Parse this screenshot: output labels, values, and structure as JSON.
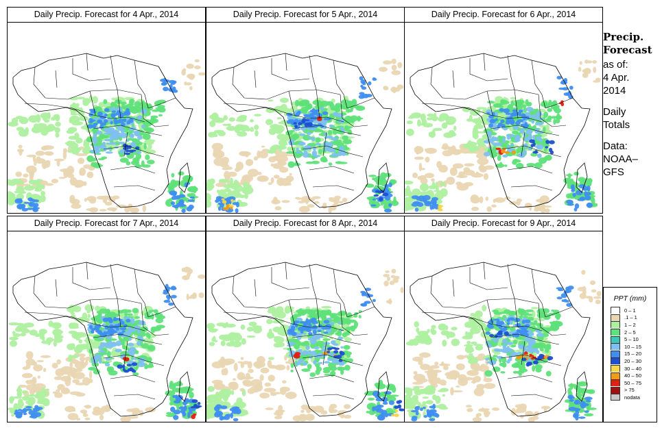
{
  "panels": [
    {
      "title": "Daily Precip. Forecast for  4 Apr., 2014"
    },
    {
      "title": "Daily Precip. Forecast for  5 Apr., 2014"
    },
    {
      "title": "Daily Precip. Forecast for  6 Apr., 2014"
    },
    {
      "title": "Daily Precip. Forecast for  7 Apr., 2014"
    },
    {
      "title": "Daily Precip. Forecast for  8 Apr., 2014"
    },
    {
      "title": "Daily Precip. Forecast for  9 Apr., 2014"
    }
  ],
  "sidebar": {
    "heading_line1": "Precip.",
    "heading_line2": "Forecast",
    "asof_label": "as of:",
    "asof_date_line1": "4 Apr.",
    "asof_date_line2": "2014",
    "totals_line1": "Daily",
    "totals_line2": "Totals",
    "data_line1": "Data:",
    "data_line2": "NOAA–",
    "data_line3": "GFS"
  },
  "legend": {
    "title": "PPT (mm)",
    "items": [
      {
        "label": "0 – 1",
        "color": "#ffffff"
      },
      {
        "label": ".1 – 1",
        "color": "#e9d6b2"
      },
      {
        "label": "1 – 2",
        "color": "#aef0a0"
      },
      {
        "label": "2 – 5",
        "color": "#5fe07a"
      },
      {
        "label": "5 – 10",
        "color": "#3cc8b4"
      },
      {
        "label": "10 – 15",
        "color": "#7ec0f0"
      },
      {
        "label": "15 – 20",
        "color": "#3f8ef0"
      },
      {
        "label": "20 – 30",
        "color": "#1f4fcf"
      },
      {
        "label": "30 – 40",
        "color": "#f6d64a"
      },
      {
        "label": "40 – 50",
        "color": "#f09a1a"
      },
      {
        "label": "50 – 75",
        "color": "#e02010"
      },
      {
        "label": "> 75",
        "color": "#a01010"
      },
      {
        "label": "nodata",
        "color": "#c8c8c8"
      }
    ]
  }
}
